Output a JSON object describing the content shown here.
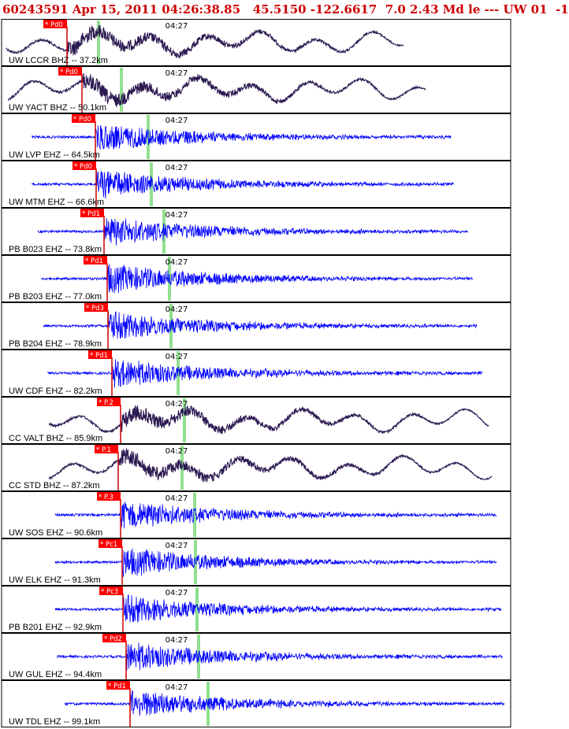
{
  "header": {
    "text": "60243591 Apr 15, 2011 04:26:38.85   45.5150 -122.6617  7.0 2.43 Md le --- UW 01  -1"
  },
  "time_label": "04:27",
  "colors": {
    "frame": "#000000",
    "pick_box": "#ff0000",
    "p_line": "#cc0000",
    "s_line": "#90e090",
    "broadband": "#2a1850",
    "short_period": "#0000ff"
  },
  "stations": [
    {
      "label": "UW LCCR BHZ -- 37.2km",
      "pick": "* Pd0",
      "kind": "broadband"
    },
    {
      "label": "UW YACT BHZ -- 50.1km",
      "pick": "* Pd0",
      "kind": "broadband"
    },
    {
      "label": "UW LVP EHZ -- 64.5km",
      "pick": "* Pd0",
      "kind": "short_period"
    },
    {
      "label": "UW MTM EHZ -- 66.6km",
      "pick": "* Pd0",
      "kind": "short_period"
    },
    {
      "label": "PB B023 EHZ -- 73.8km",
      "pick": "* Pd1",
      "kind": "short_period"
    },
    {
      "label": "PB B203 EHZ -- 77.0km",
      "pick": "* Pd1",
      "kind": "short_period"
    },
    {
      "label": "PB B204 EHZ -- 78.9km",
      "pick": "* Pd3",
      "kind": "short_period"
    },
    {
      "label": "UW CDF EHZ -- 82.2km",
      "pick": "* Pd1",
      "kind": "short_period"
    },
    {
      "label": "CC VALT BHZ -- 85.9km",
      "pick": "* P.2",
      "kind": "broadband"
    },
    {
      "label": "CC STD BHZ -- 87.2km",
      "pick": "* P.1",
      "kind": "broadband"
    },
    {
      "label": "UW SOS EHZ -- 90.6km",
      "pick": "* P.3",
      "kind": "short_period"
    },
    {
      "label": "UW ELK EHZ -- 91.3km",
      "pick": "* Pc1",
      "kind": "short_period"
    },
    {
      "label": "PB B201 EHZ -- 92.9km",
      "pick": "* Pc3",
      "kind": "short_period"
    },
    {
      "label": "UW GUL EHZ -- 94.4km",
      "pick": "* Pd2",
      "kind": "short_period"
    },
    {
      "label": "UW TDL EHZ -- 99.1km",
      "pick": "* Pd1",
      "kind": "short_period"
    }
  ]
}
